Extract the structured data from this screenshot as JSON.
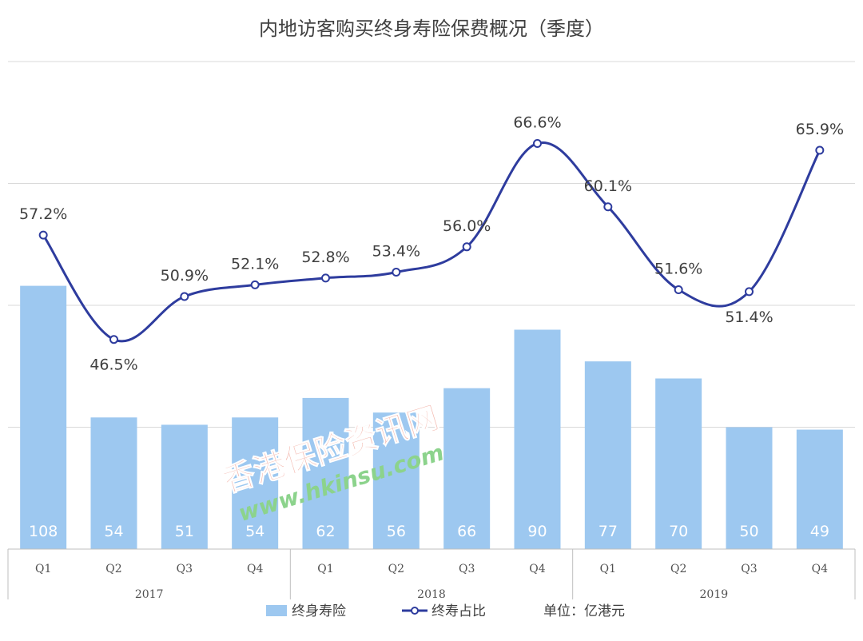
{
  "chart_data": {
    "type": "bar",
    "title": "内地访客购买终身寿险保费概况（季度）",
    "categories": [
      "Q1",
      "Q2",
      "Q3",
      "Q4",
      "Q1",
      "Q2",
      "Q3",
      "Q4",
      "Q1",
      "Q2",
      "Q3",
      "Q4"
    ],
    "years": [
      "2017",
      "2018",
      "2019"
    ],
    "series": [
      {
        "name": "终身寿险",
        "type": "bar",
        "values": [
          108,
          54,
          51,
          54,
          62,
          56,
          66,
          90,
          77,
          70,
          50,
          49
        ],
        "color": "#9DC8F0"
      },
      {
        "name": "终寿占比",
        "type": "line",
        "values": [
          57.2,
          46.5,
          50.9,
          52.1,
          52.8,
          53.4,
          56.0,
          66.6,
          60.1,
          51.6,
          51.4,
          65.9
        ],
        "labels": [
          "57.2%",
          "46.5%",
          "50.9%",
          "52.1%",
          "52.8%",
          "53.4%",
          "56.0%",
          "66.6%",
          "60.1%",
          "51.6%",
          "51.4%",
          "65.9%"
        ],
        "color": "#2E3C9E"
      }
    ],
    "unit_note": "单位：亿港元",
    "bar_ylim": [
      0,
      200
    ],
    "line_ylim": [
      25,
      75
    ],
    "grid": true,
    "legend_position": "bottom"
  },
  "watermark": {
    "main": "香港保险资讯网",
    "url": "www.hkinsu.com",
    "color": "#F3B8AE",
    "url_color": "#8CD38C"
  }
}
